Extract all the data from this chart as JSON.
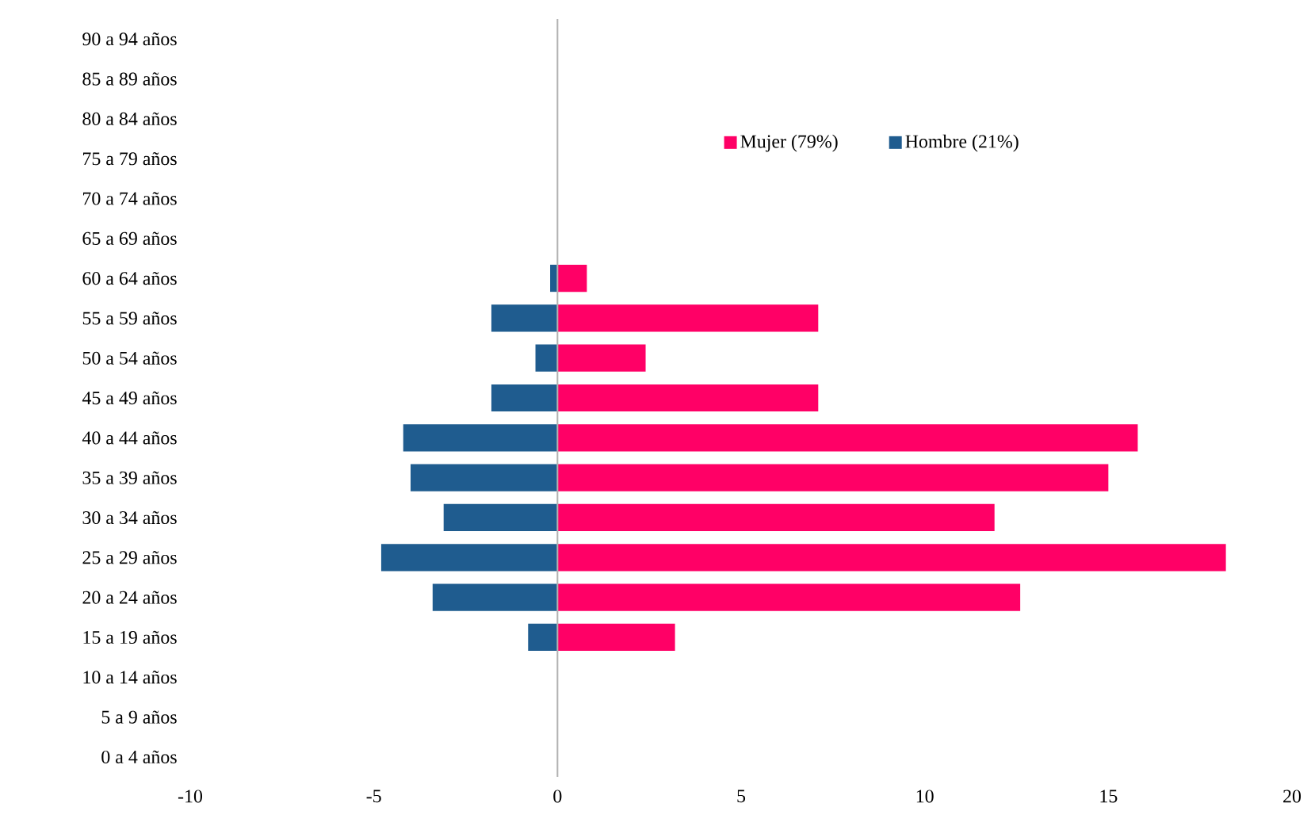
{
  "chart_data": {
    "type": "bar",
    "orientation": "horizontal",
    "categories": [
      "90 a 94 años",
      "85 a 89 años",
      "80 a 84 años",
      "75 a 79 años",
      "70 a 74 años",
      "65 a 69 años",
      "60 a 64 años",
      "55 a 59 años",
      "50 a 54 años",
      "45 a 49 años",
      "40 a 44 años",
      "35 a 39 años",
      "30 a 34 años",
      "25 a 29 años",
      "20 a 24 años",
      "15 a 19 años",
      "10 a 14 años",
      "5 a 9 años",
      "0 a 4 años"
    ],
    "series": [
      {
        "name": "Mujer (79%)",
        "color": "#ff0066",
        "values": [
          null,
          null,
          null,
          null,
          null,
          null,
          0.8,
          7.1,
          2.4,
          7.1,
          15.8,
          15.0,
          11.9,
          18.2,
          12.6,
          3.2,
          null,
          null,
          null
        ]
      },
      {
        "name": "Hombre (21%)",
        "color": "#1f5c8f",
        "values": [
          null,
          null,
          null,
          null,
          null,
          null,
          -0.2,
          -1.8,
          -0.6,
          -1.8,
          -4.2,
          -4.0,
          -3.1,
          -4.8,
          -3.4,
          -0.8,
          null,
          null,
          null
        ]
      }
    ],
    "xlim": [
      -10,
      20
    ],
    "xticks": [
      -10,
      -5,
      0,
      5,
      10,
      15,
      20
    ],
    "stacked": true,
    "legend": "top right"
  }
}
